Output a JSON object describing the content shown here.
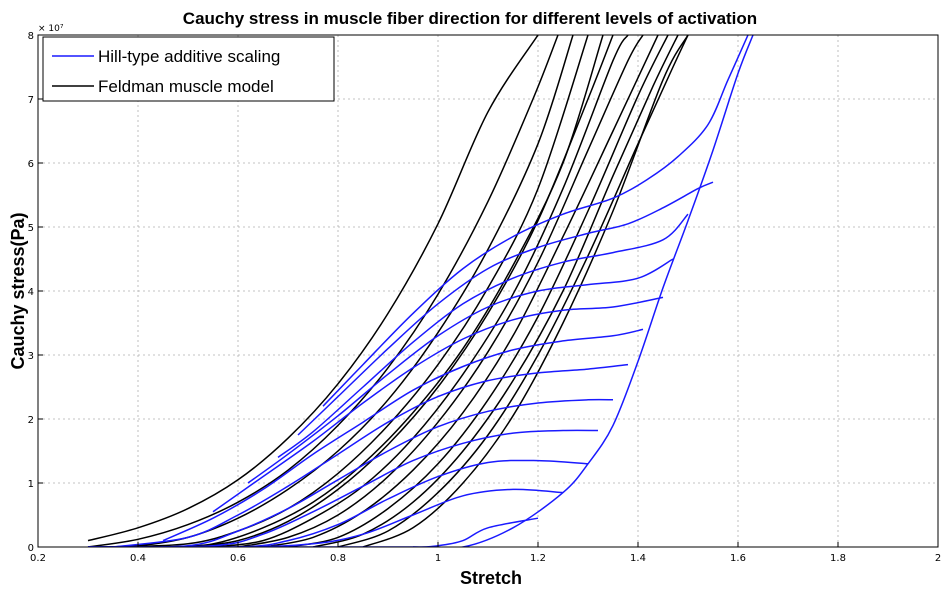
{
  "chart_data": {
    "type": "line",
    "title": "Cauchy stress in muscle fiber direction for different levels of activation",
    "xlabel": "Stretch",
    "ylabel": "Cauchy stress(Pa)",
    "y_exponent": "× 10⁷",
    "xlim": [
      0.2,
      2
    ],
    "ylim": [
      0,
      8
    ],
    "x_ticks": [
      "0.2",
      "0.4",
      "0.6",
      "0.8",
      "1",
      "1.2",
      "1.4",
      "1.6",
      "1.8",
      "2"
    ],
    "y_ticks": [
      "0",
      "1",
      "2",
      "3",
      "4",
      "5",
      "6",
      "7",
      "8"
    ],
    "grid": true,
    "legend_position": "top-left",
    "legend": [
      {
        "label": "Hill-type additive scaling",
        "color": "#1a1aff"
      },
      {
        "label": "Feldman muscle model",
        "color": "#000000"
      }
    ],
    "series": [
      {
        "name": "Hill-type additive scaling",
        "color": "#1a1aff",
        "curves": [
          {
            "x": [
              0.3,
              0.6,
              0.8,
              0.95,
              1.0,
              1.05,
              1.1,
              1.2
            ],
            "y": [
              0,
              0,
              0,
              0,
              0.02,
              0.1,
              0.3,
              0.45
            ]
          },
          {
            "x": [
              0.3,
              0.6,
              0.75,
              0.85,
              0.95,
              1.05,
              1.15,
              1.25
            ],
            "y": [
              0,
              0,
              0.05,
              0.2,
              0.5,
              0.8,
              0.9,
              0.85
            ]
          },
          {
            "x": [
              0.3,
              0.6,
              0.7,
              0.8,
              0.9,
              1.0,
              1.1,
              1.2,
              1.3
            ],
            "y": [
              0,
              0,
              0.1,
              0.35,
              0.75,
              1.1,
              1.32,
              1.35,
              1.3
            ]
          },
          {
            "x": [
              0.3,
              0.55,
              0.65,
              0.75,
              0.85,
              0.95,
              1.05,
              1.15,
              1.25,
              1.32
            ],
            "y": [
              0,
              0.02,
              0.2,
              0.55,
              0.95,
              1.35,
              1.62,
              1.78,
              1.82,
              1.82
            ]
          },
          {
            "x": [
              0.3,
              0.5,
              0.6,
              0.7,
              0.8,
              0.9,
              1.0,
              1.1,
              1.2,
              1.3,
              1.35
            ],
            "y": [
              0,
              0.02,
              0.25,
              0.6,
              1.05,
              1.5,
              1.88,
              2.12,
              2.25,
              2.3,
              2.3
            ]
          },
          {
            "x": [
              0.35,
              0.5,
              0.6,
              0.7,
              0.8,
              0.9,
              1.0,
              1.1,
              1.2,
              1.3,
              1.38
            ],
            "y": [
              0,
              0.15,
              0.5,
              0.95,
              1.45,
              1.95,
              2.35,
              2.6,
              2.72,
              2.78,
              2.85
            ]
          },
          {
            "x": [
              0.45,
              0.55,
              0.65,
              0.75,
              0.85,
              0.95,
              1.05,
              1.15,
              1.25,
              1.35,
              1.41
            ],
            "y": [
              0.1,
              0.45,
              0.9,
              1.45,
              1.95,
              2.45,
              2.82,
              3.08,
              3.22,
              3.3,
              3.4
            ]
          },
          {
            "x": [
              0.55,
              0.65,
              0.75,
              0.85,
              0.95,
              1.05,
              1.15,
              1.25,
              1.35,
              1.45
            ],
            "y": [
              0.55,
              1.1,
              1.65,
              2.25,
              2.8,
              3.25,
              3.55,
              3.7,
              3.75,
              3.9
            ]
          },
          {
            "x": [
              0.62,
              0.7,
              0.8,
              0.9,
              1.0,
              1.1,
              1.2,
              1.3,
              1.4,
              1.47
            ],
            "y": [
              1.0,
              1.45,
              2.05,
              2.7,
              3.3,
              3.75,
              4.0,
              4.1,
              4.2,
              4.5
            ]
          },
          {
            "x": [
              0.68,
              0.75,
              0.85,
              0.95,
              1.05,
              1.15,
              1.25,
              1.35,
              1.45,
              1.5
            ],
            "y": [
              1.4,
              1.8,
              2.5,
              3.2,
              3.8,
              4.2,
              4.45,
              4.6,
              4.8,
              5.2
            ]
          },
          {
            "x": [
              0.72,
              0.8,
              0.9,
              1.0,
              1.1,
              1.2,
              1.3,
              1.38,
              1.45,
              1.52,
              1.55
            ],
            "y": [
              1.75,
              2.35,
              3.1,
              3.8,
              4.35,
              4.68,
              4.9,
              5.05,
              5.3,
              5.6,
              5.7
            ]
          },
          {
            "x": [
              0.77,
              0.85,
              0.95,
              1.05,
              1.15,
              1.25,
              1.35,
              1.42,
              1.48,
              1.54,
              1.58,
              1.62
            ],
            "y": [
              2.2,
              2.85,
              3.65,
              4.35,
              4.85,
              5.2,
              5.45,
              5.75,
              6.1,
              6.6,
              7.3,
              8.0
            ]
          },
          {
            "x": [
              0.95,
              1.05,
              1.15,
              1.25,
              1.3,
              1.35,
              1.4,
              1.45,
              1.5,
              1.55,
              1.6,
              1.63
            ],
            "y": [
              0,
              0,
              0.3,
              0.85,
              1.3,
              1.9,
              2.9,
              4.05,
              5.1,
              6.2,
              7.4,
              8.0
            ]
          }
        ]
      },
      {
        "name": "Feldman muscle model",
        "color": "#000000",
        "curves": [
          {
            "x": [
              0.3,
              0.4,
              0.5,
              0.6,
              0.7,
              0.8,
              0.9,
              1.0,
              1.1,
              1.2
            ],
            "y": [
              0.1,
              0.3,
              0.6,
              1.05,
              1.7,
              2.55,
              3.65,
              5.05,
              6.8,
              8.0
            ]
          },
          {
            "x": [
              0.3,
              0.4,
              0.5,
              0.6,
              0.7,
              0.8,
              0.9,
              1.0,
              1.1,
              1.19,
              1.24
            ],
            "y": [
              0,
              0.12,
              0.35,
              0.7,
              1.2,
              1.9,
              2.8,
              3.95,
              5.4,
              7.0,
              8.0
            ]
          },
          {
            "x": [
              0.3,
              0.4,
              0.5,
              0.6,
              0.7,
              0.8,
              0.9,
              1.0,
              1.1,
              1.2,
              1.27
            ],
            "y": [
              0,
              0.02,
              0.15,
              0.45,
              0.9,
              1.5,
              2.3,
              3.35,
              4.65,
              6.3,
              8.0
            ]
          },
          {
            "x": [
              0.35,
              0.5,
              0.6,
              0.7,
              0.8,
              0.9,
              1.0,
              1.1,
              1.2,
              1.3
            ],
            "y": [
              0,
              0.05,
              0.25,
              0.6,
              1.15,
              1.9,
              2.85,
              4.05,
              5.6,
              8.0
            ]
          },
          {
            "x": [
              0.45,
              0.55,
              0.65,
              0.75,
              0.85,
              0.95,
              1.05,
              1.15,
              1.25,
              1.33
            ],
            "y": [
              0,
              0.05,
              0.3,
              0.7,
              1.3,
              2.1,
              3.1,
              4.4,
              6.0,
              8.0
            ]
          },
          {
            "x": [
              0.5,
              0.6,
              0.7,
              0.8,
              0.9,
              1.0,
              1.1,
              1.2,
              1.3,
              1.35
            ],
            "y": [
              0,
              0.1,
              0.4,
              0.9,
              1.6,
              2.5,
              3.65,
              5.1,
              7.0,
              8.0
            ]
          },
          {
            "x": [
              0.55,
              0.65,
              0.75,
              0.85,
              0.95,
              1.05,
              1.15,
              1.25,
              1.35,
              1.38
            ],
            "y": [
              0,
              0.1,
              0.45,
              0.95,
              1.7,
              2.7,
              3.95,
              5.6,
              7.6,
              8.0
            ]
          },
          {
            "x": [
              0.6,
              0.7,
              0.8,
              0.9,
              1.0,
              1.1,
              1.2,
              1.3,
              1.38,
              1.41
            ],
            "y": [
              0,
              0.15,
              0.5,
              1.1,
              1.95,
              3.05,
              4.45,
              6.2,
              7.6,
              8.0
            ]
          },
          {
            "x": [
              0.65,
              0.75,
              0.85,
              0.95,
              1.05,
              1.15,
              1.25,
              1.35,
              1.44
            ],
            "y": [
              0,
              0.15,
              0.55,
              1.2,
              2.1,
              3.3,
              4.85,
              6.5,
              8.0
            ]
          },
          {
            "x": [
              0.7,
              0.8,
              0.9,
              1.0,
              1.1,
              1.2,
              1.3,
              1.4,
              1.46
            ],
            "y": [
              0,
              0.15,
              0.6,
              1.3,
              2.3,
              3.6,
              5.25,
              7.05,
              8.0
            ]
          },
          {
            "x": [
              0.75,
              0.85,
              0.95,
              1.05,
              1.15,
              1.25,
              1.35,
              1.43,
              1.48
            ],
            "y": [
              0,
              0.2,
              0.7,
              1.5,
              2.6,
              4.0,
              5.8,
              7.2,
              8.0
            ]
          },
          {
            "x": [
              0.8,
              0.9,
              1.0,
              1.1,
              1.2,
              1.3,
              1.4,
              1.47,
              1.5
            ],
            "y": [
              0,
              0.25,
              0.85,
              1.75,
              3.0,
              4.55,
              6.3,
              7.5,
              8.0
            ]
          },
          {
            "x": [
              0.85,
              0.95,
              1.05,
              1.15,
              1.25,
              1.35,
              1.45,
              1.5
            ],
            "y": [
              0,
              0.3,
              1.0,
              2.05,
              3.5,
              5.25,
              7.3,
              8.0
            ]
          }
        ]
      }
    ]
  }
}
